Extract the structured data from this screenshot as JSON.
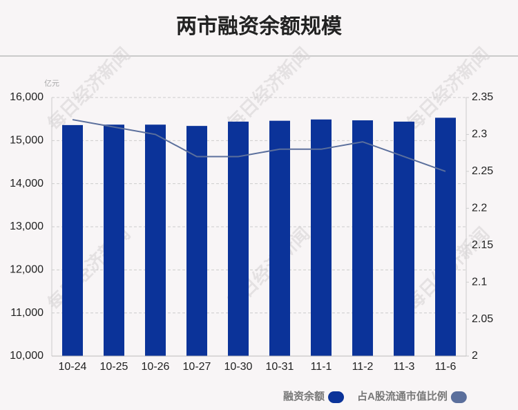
{
  "chart_data": {
    "type": "bar_line",
    "title": "两市融资余额规模",
    "y_unit": "亿元",
    "watermark": "每日经济新闻",
    "categories": [
      "10-24",
      "10-25",
      "10-26",
      "10-27",
      "10-30",
      "10-31",
      "11-1",
      "11-2",
      "11-3",
      "11-6"
    ],
    "series": [
      {
        "name": "融资余额",
        "type": "bar",
        "color": "#0b3399",
        "values": [
          15360,
          15370,
          15370,
          15340,
          15440,
          15460,
          15490,
          15470,
          15440,
          15530
        ]
      },
      {
        "name": "占A股流通市值比例",
        "type": "line",
        "axis": "y2",
        "color": "#5b6f9c",
        "values": [
          2.32,
          2.31,
          2.3,
          2.27,
          2.27,
          2.28,
          2.28,
          2.29,
          2.27,
          2.25
        ]
      }
    ],
    "ylim": [
      10000,
      16000
    ],
    "yticks": [
      {
        "value": 10000,
        "label": "10,000"
      },
      {
        "value": 11000,
        "label": "11,000"
      },
      {
        "value": 12000,
        "label": "12,000"
      },
      {
        "value": 13000,
        "label": "13,000"
      },
      {
        "value": 14000,
        "label": "14,000"
      },
      {
        "value": 15000,
        "label": "15,000"
      },
      {
        "value": 16000,
        "label": "16,000"
      }
    ],
    "y2lim": [
      2,
      2.35
    ],
    "y2ticks": [
      2,
      2.05,
      2.1,
      2.15,
      2.2,
      2.25,
      2.3,
      2.35
    ],
    "grid": true
  }
}
